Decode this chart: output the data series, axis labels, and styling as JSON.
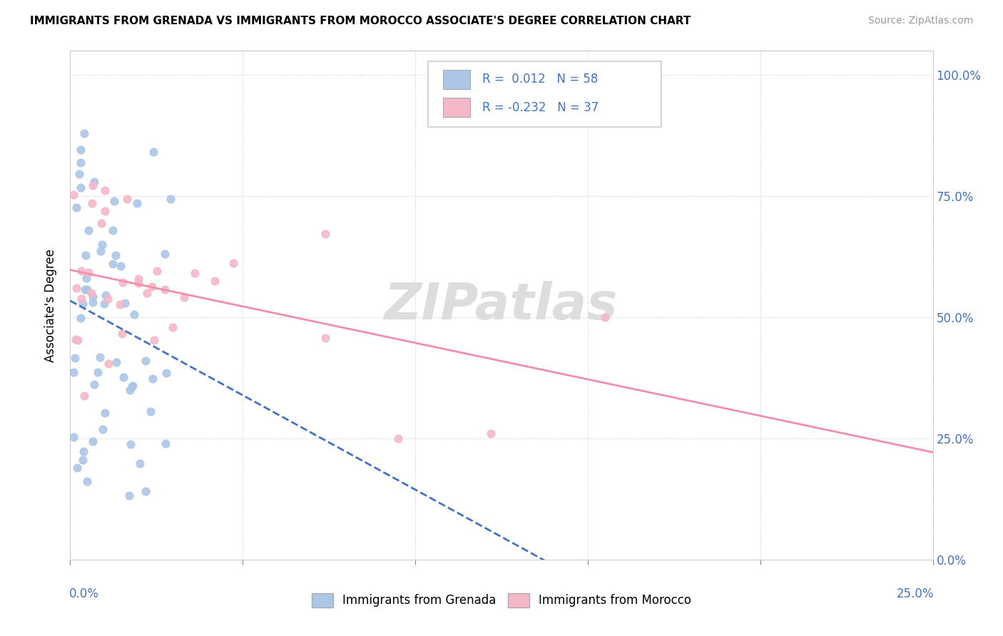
{
  "title": "IMMIGRANTS FROM GRENADA VS IMMIGRANTS FROM MOROCCO ASSOCIATE'S DEGREE CORRELATION CHART",
  "source": "Source: ZipAtlas.com",
  "ylabel": "Associate's Degree",
  "ytick_vals": [
    0.0,
    0.25,
    0.5,
    0.75,
    1.0
  ],
  "ytick_labels": [
    "0.0%",
    "25.0%",
    "50.0%",
    "75.0%",
    "100.0%"
  ],
  "xlim": [
    0.0,
    0.25
  ],
  "ylim": [
    0.0,
    1.05
  ],
  "grenada_color": "#adc6e8",
  "morocco_color": "#f4b8c8",
  "grenada_line_color": "#4472c4",
  "morocco_line_color": "#f090a8",
  "background_color": "#ffffff",
  "grenada_r": 0.012,
  "grenada_n": 58,
  "morocco_r": -0.232,
  "morocco_n": 37,
  "legend_r1": "R =  0.012   N = 58",
  "legend_r2": "R = -0.232   N = 37",
  "legend_label1": "Immigrants from Grenada",
  "legend_label2": "Immigrants from Morocco",
  "watermark": "ZIPatlas"
}
